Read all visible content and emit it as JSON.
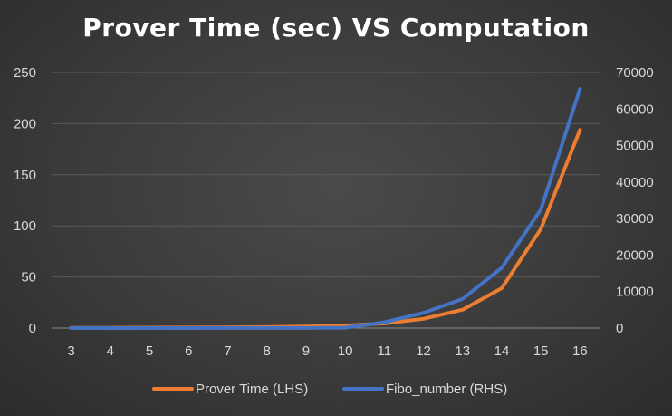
{
  "chart_data": {
    "type": "line",
    "title": "Prover Time (sec) VS Computation",
    "x": [
      3,
      4,
      5,
      6,
      7,
      8,
      9,
      10,
      11,
      12,
      13,
      14,
      15,
      16
    ],
    "left_axis": {
      "ylim": [
        0,
        250
      ],
      "ticks": [
        0,
        50,
        100,
        150,
        200,
        250
      ]
    },
    "right_axis": {
      "ylim": [
        0,
        70000
      ],
      "ticks": [
        0,
        10000,
        20000,
        30000,
        40000,
        50000,
        60000,
        70000
      ]
    },
    "series": [
      {
        "name": "Prover Time (LHS)",
        "axis": "left",
        "color": "#ed7d31",
        "values": [
          0.2,
          0.3,
          0.4,
          0.5,
          0.7,
          1,
          1.5,
          2.5,
          4.5,
          9,
          18,
          39,
          97,
          194
        ]
      },
      {
        "name": "Fibo_number (RHS)",
        "axis": "right",
        "color": "#4472c4",
        "values": [
          2,
          3,
          5,
          8,
          13,
          21,
          34,
          89,
          1597,
          4181,
          8000,
          16500,
          32500,
          65500
        ]
      }
    ],
    "grid": true,
    "legend": "bottom"
  }
}
